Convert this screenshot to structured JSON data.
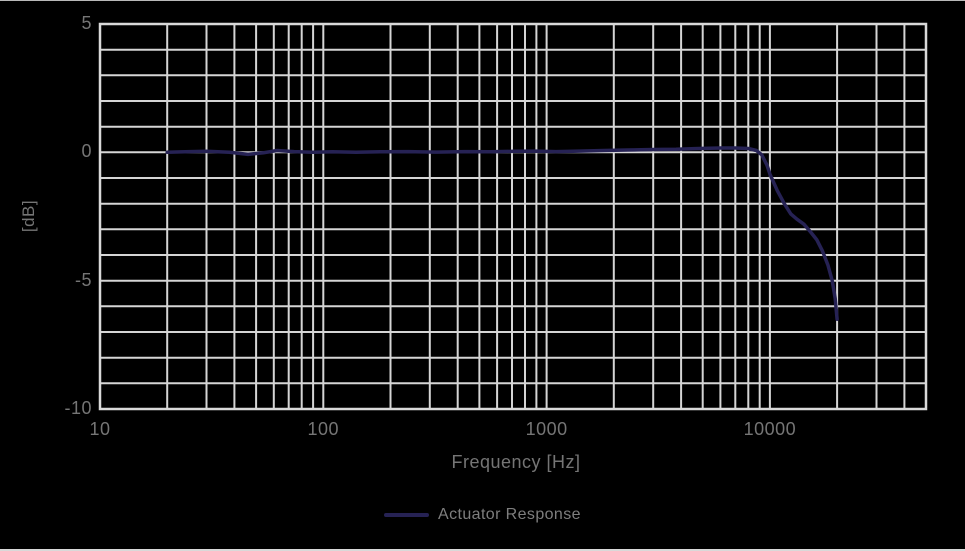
{
  "figure": {
    "background_color": "#000000",
    "grid_color": "#d5d5d5",
    "frame_color": "#d9d9d9",
    "text_color": "#757575"
  },
  "chart_data": {
    "type": "line",
    "title": "",
    "xlabel": "Frequency [Hz]",
    "ylabel": "[dB]",
    "xscale": "log",
    "xlim": [
      10,
      50000
    ],
    "ylim": [
      -10,
      5
    ],
    "grid": "major and minor, both axes, light gray on black",
    "y_tick_step": 1,
    "x_ticks": [
      {
        "value": 10,
        "label": "10"
      },
      {
        "value": 100,
        "label": "100"
      },
      {
        "value": 1000,
        "label": "1000"
      },
      {
        "value": 10000,
        "label": "10000"
      }
    ],
    "y_ticks": [
      {
        "value": 5,
        "label": "5"
      },
      {
        "value": 0,
        "label": "0"
      },
      {
        "value": -5,
        "label": "-5"
      },
      {
        "value": -10,
        "label": "-10"
      }
    ],
    "legend": {
      "position": "bottom-center"
    },
    "series": [
      {
        "name": "Actuator Response",
        "color": "#262254",
        "line_width": 3.5,
        "points": [
          [
            20,
            0.0
          ],
          [
            24,
            0.02
          ],
          [
            30,
            0.04
          ],
          [
            38,
            0.0
          ],
          [
            46,
            -0.08
          ],
          [
            54,
            -0.02
          ],
          [
            62,
            0.07
          ],
          [
            74,
            0.03
          ],
          [
            90,
            0.0
          ],
          [
            110,
            0.02
          ],
          [
            140,
            0.0
          ],
          [
            180,
            0.02
          ],
          [
            240,
            0.03
          ],
          [
            320,
            0.01
          ],
          [
            430,
            0.03
          ],
          [
            560,
            0.02
          ],
          [
            720,
            0.04
          ],
          [
            900,
            0.05
          ],
          [
            1100,
            0.03
          ],
          [
            1400,
            0.05
          ],
          [
            1800,
            0.07
          ],
          [
            2300,
            0.09
          ],
          [
            3000,
            0.11
          ],
          [
            3800,
            0.12
          ],
          [
            4800,
            0.15
          ],
          [
            6000,
            0.17
          ],
          [
            7000,
            0.17
          ],
          [
            8000,
            0.15
          ],
          [
            8700,
            0.07
          ],
          [
            9200,
            -0.1
          ],
          [
            9700,
            -0.5
          ],
          [
            10000,
            -0.85
          ],
          [
            10800,
            -1.5
          ],
          [
            11600,
            -2.0
          ],
          [
            12400,
            -2.4
          ],
          [
            13200,
            -2.6
          ],
          [
            14200,
            -2.8
          ],
          [
            15200,
            -3.1
          ],
          [
            16200,
            -3.4
          ],
          [
            17200,
            -3.85
          ],
          [
            18200,
            -4.4
          ],
          [
            19000,
            -5.0
          ],
          [
            19600,
            -5.7
          ],
          [
            20000,
            -6.5
          ]
        ]
      }
    ]
  }
}
